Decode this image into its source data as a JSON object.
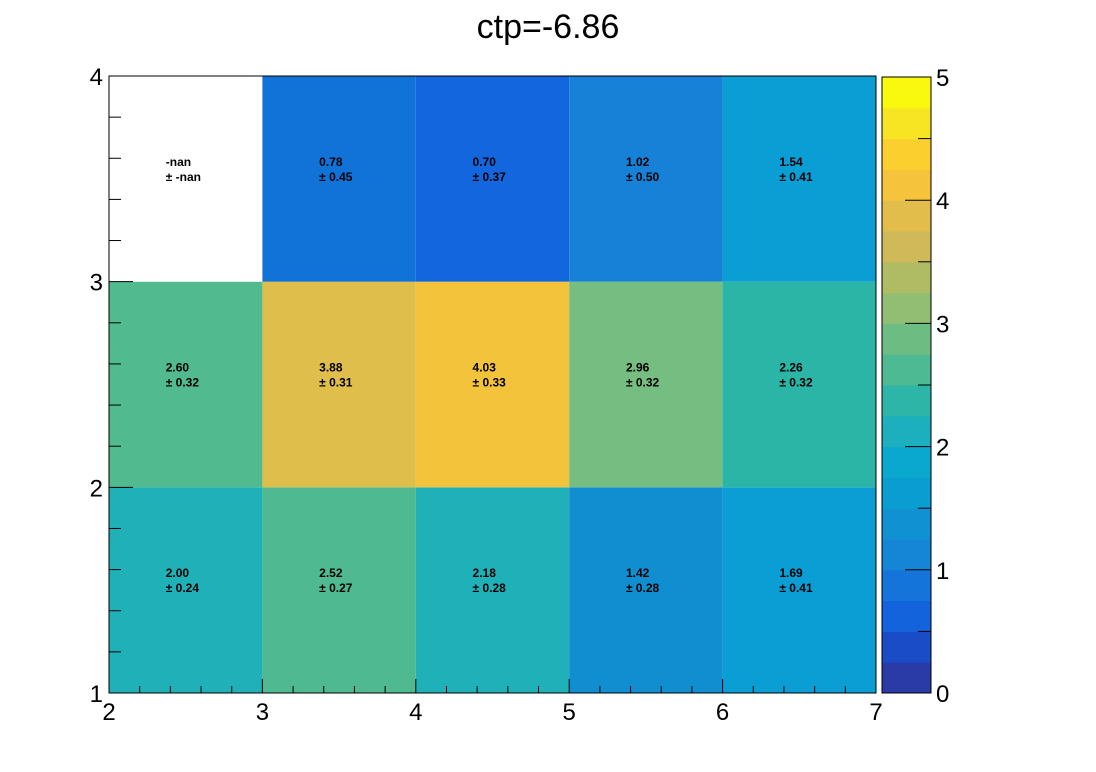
{
  "chart_data": {
    "type": "heatmap",
    "title": "ctp=-6.86",
    "x_edges": [
      2,
      3,
      4,
      5,
      6,
      7
    ],
    "y_edges": [
      1,
      2,
      3,
      4
    ],
    "xlim": [
      2,
      7
    ],
    "ylim": [
      1,
      4
    ],
    "x_ticks": [
      2,
      3,
      4,
      5,
      6,
      7
    ],
    "y_ticks": [
      1,
      2,
      3,
      4
    ],
    "colorbar": {
      "range": [
        0,
        5
      ],
      "ticks": [
        0,
        1,
        2,
        3,
        4,
        5
      ],
      "palette": "viridis-like"
    },
    "cells": [
      {
        "x": 2,
        "y": 1,
        "value": "2.00",
        "error": "0.24",
        "color": "#20b0b8"
      },
      {
        "x": 3,
        "y": 1,
        "value": "2.52",
        "error": "0.27",
        "color": "#4fba92"
      },
      {
        "x": 4,
        "y": 1,
        "value": "2.18",
        "error": "0.28",
        "color": "#20b0b8"
      },
      {
        "x": 5,
        "y": 1,
        "value": "1.42",
        "error": "0.28",
        "color": "#108ed0"
      },
      {
        "x": 6,
        "y": 1,
        "value": "1.69",
        "error": "0.41",
        "color": "#0a9ed4"
      },
      {
        "x": 2,
        "y": 2,
        "value": "2.60",
        "error": "0.32",
        "color": "#52ba8f"
      },
      {
        "x": 3,
        "y": 2,
        "value": "3.88",
        "error": "0.31",
        "color": "#e0be4b"
      },
      {
        "x": 4,
        "y": 2,
        "value": "4.03",
        "error": "0.33",
        "color": "#f3c33c"
      },
      {
        "x": 5,
        "y": 2,
        "value": "2.96",
        "error": "0.32",
        "color": "#76bd81"
      },
      {
        "x": 6,
        "y": 2,
        "value": "2.26",
        "error": "0.32",
        "color": "#2ab5a6"
      },
      {
        "x": 2,
        "y": 3,
        "value": "-nan",
        "error": "-nan",
        "color": "#ffffff"
      },
      {
        "x": 3,
        "y": 3,
        "value": "0.78",
        "error": "0.45",
        "color": "#1173d8"
      },
      {
        "x": 4,
        "y": 3,
        "value": "0.70",
        "error": "0.37",
        "color": "#1366dd"
      },
      {
        "x": 5,
        "y": 3,
        "value": "1.02",
        "error": "0.50",
        "color": "#1681d6"
      },
      {
        "x": 6,
        "y": 3,
        "value": "1.54",
        "error": "0.41",
        "color": "#0a9ed4"
      }
    ]
  },
  "labels": {
    "pm_prefix": "± "
  },
  "palette": [
    "#2a3aa6",
    "#1a4cc8",
    "#1363dc",
    "#1474da",
    "#1585d6",
    "#1092d2",
    "#0a9dd2",
    "#0aa8cf",
    "#1cb0bf",
    "#2db6a8",
    "#4dba93",
    "#6dbd83",
    "#92be73",
    "#b0bc64",
    "#cfb958",
    "#e3bd4b",
    "#f6c33c",
    "#fbd02e",
    "#f7e422",
    "#f9f90f"
  ]
}
